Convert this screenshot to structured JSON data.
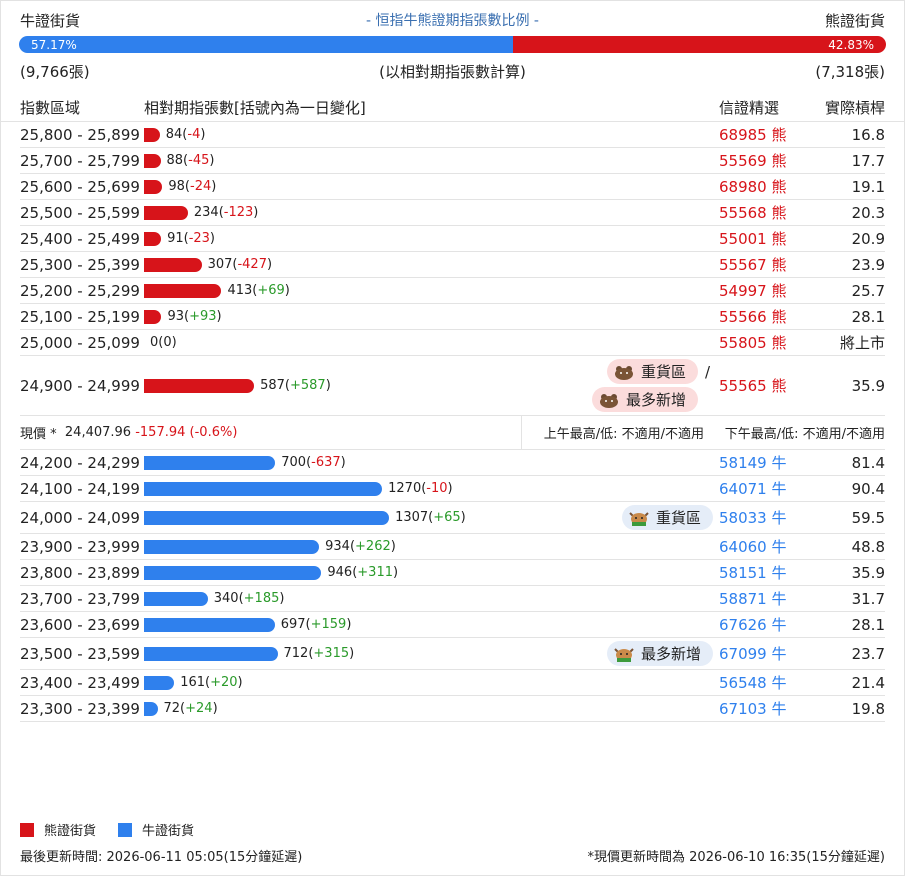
{
  "header": {
    "left": "牛證街貨",
    "title": "- 恒指牛熊證期指張數比例 -",
    "right": "熊證街貨"
  },
  "ratio": {
    "bull": {
      "value": 57.17,
      "label": "57.17%"
    },
    "bear": {
      "value": 42.83,
      "label": "42.83%"
    }
  },
  "summary": {
    "bull_count": "(9,766張)",
    "note": "(以相對期指張數計算)",
    "bear_count": "(7,318張)"
  },
  "columns": [
    "指數區域",
    "相對期指張數[括號內為一日變化]",
    "信證精選",
    "實際槓桿"
  ],
  "bear_rows": [
    {
      "range": "25,800 - 25,899",
      "count": 84,
      "change": "-4",
      "code": 68985,
      "kind": "熊",
      "leverage": 16.8
    },
    {
      "range": "25,700 - 25,799",
      "count": 88,
      "change": "-45",
      "code": 55569,
      "kind": "熊",
      "leverage": 17.7
    },
    {
      "range": "25,600 - 25,699",
      "count": 98,
      "change": "-24",
      "code": 68980,
      "kind": "熊",
      "leverage": 19.1
    },
    {
      "range": "25,500 - 25,599",
      "count": 234,
      "change": "-123",
      "code": 55568,
      "kind": "熊",
      "leverage": 20.3
    },
    {
      "range": "25,400 - 25,499",
      "count": 91,
      "change": "-23",
      "code": 55001,
      "kind": "熊",
      "leverage": 20.9
    },
    {
      "range": "25,300 - 25,399",
      "count": 307,
      "change": "-427",
      "code": 55567,
      "kind": "熊",
      "leverage": 23.9
    },
    {
      "range": "25,200 - 25,299",
      "count": 413,
      "change": "+69",
      "code": 54997,
      "kind": "熊",
      "leverage": 25.7
    },
    {
      "range": "25,100 - 25,199",
      "count": 93,
      "change": "+93",
      "code": 55566,
      "kind": "熊",
      "leverage": 28.1
    },
    {
      "range": "25,000 - 25,099",
      "count": 0,
      "change": "0",
      "code": 55805,
      "kind": "熊",
      "leverage": "將上市"
    },
    {
      "range": "24,900 - 24,999",
      "count": 587,
      "change": "+587",
      "code": 55565,
      "kind": "熊",
      "leverage": 35.9,
      "tags": [
        "重貨區",
        "最多新增"
      ],
      "tag_separator": "/"
    }
  ],
  "current": {
    "label": "現價 *",
    "price": "24,407.96",
    "change": "-157.94 (-0.6%)",
    "am": "上午最高/低: 不適用/不適用",
    "pm": "下午最高/低: 不適用/不適用"
  },
  "bull_rows": [
    {
      "range": "24,200 - 24,299",
      "count": 700,
      "change": "-637",
      "code": 58149,
      "kind": "牛",
      "leverage": 81.4
    },
    {
      "range": "24,100 - 24,199",
      "count": 1270,
      "change": "-10",
      "code": 64071,
      "kind": "牛",
      "leverage": 90.4
    },
    {
      "range": "24,000 - 24,099",
      "count": 1307,
      "change": "+65",
      "code": 58033,
      "kind": "牛",
      "leverage": 59.5,
      "tags": [
        "重貨區"
      ]
    },
    {
      "range": "23,900 - 23,999",
      "count": 934,
      "change": "+262",
      "code": 64060,
      "kind": "牛",
      "leverage": 48.8
    },
    {
      "range": "23,800 - 23,899",
      "count": 946,
      "change": "+311",
      "code": 58151,
      "kind": "牛",
      "leverage": 35.9
    },
    {
      "range": "23,700 - 23,799",
      "count": 340,
      "change": "+185",
      "code": 58871,
      "kind": "牛",
      "leverage": 31.7
    },
    {
      "range": "23,600 - 23,699",
      "count": 697,
      "change": "+159",
      "code": 67626,
      "kind": "牛",
      "leverage": 28.1
    },
    {
      "range": "23,500 - 23,599",
      "count": 712,
      "change": "+315",
      "code": 67099,
      "kind": "牛",
      "leverage": 23.7,
      "tags": [
        "最多新增"
      ]
    },
    {
      "range": "23,400 - 23,499",
      "count": 161,
      "change": "+20",
      "code": 56548,
      "kind": "牛",
      "leverage": 21.4
    },
    {
      "range": "23,300 - 23,399",
      "count": 72,
      "change": "+24",
      "code": 67103,
      "kind": "牛",
      "leverage": 19.8
    }
  ],
  "legend": [
    "熊證街貨",
    "牛證街貨"
  ],
  "footer": {
    "left": "最後更新時間: 2026-06-11 05:05(15分鐘延遲)",
    "right": "*現價更新時間為 2026-06-10 16:35(15分鐘延遲)"
  }
}
